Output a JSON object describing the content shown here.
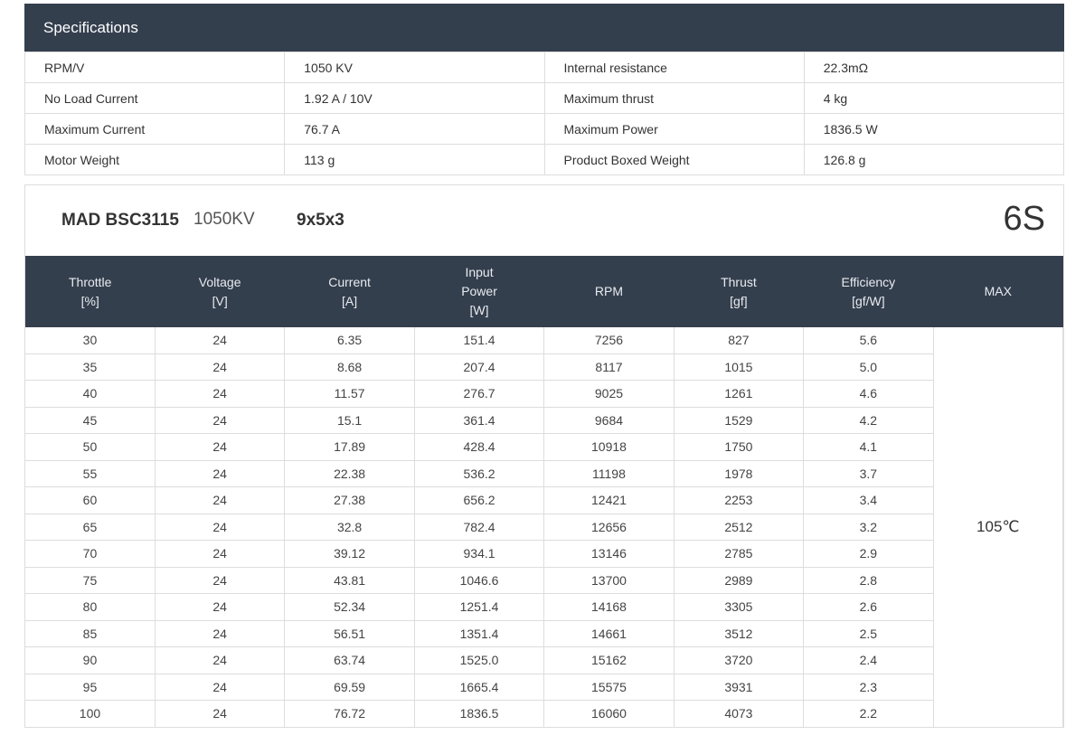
{
  "specs": {
    "title": "Specifications",
    "rows": [
      [
        "RPM/V",
        "1050 KV",
        "Internal resistance",
        "22.3mΩ"
      ],
      [
        "No Load Current",
        "1.92 A / 10V",
        "Maximum thrust",
        "4 kg"
      ],
      [
        "Maximum Current",
        "76.7 A",
        "Maximum Power",
        "1836.5 W"
      ],
      [
        "Motor Weight",
        "113 g",
        "Product Boxed Weight",
        "126.8 g"
      ]
    ]
  },
  "perf": {
    "model": "MAD BSC3115",
    "kv": "1050KV",
    "prop": "9x5x3",
    "cells": "6S",
    "headers": [
      [
        "Throttle",
        "[%]"
      ],
      [
        "Voltage",
        "[V]"
      ],
      [
        "Current",
        "[A]"
      ],
      [
        "Input",
        "Power",
        "[W]"
      ],
      [
        "RPM"
      ],
      [
        "Thrust",
        "[gf]"
      ],
      [
        "Efficiency",
        "[gf/W]"
      ],
      [
        "MAX"
      ]
    ],
    "max_temp": "105℃",
    "rows": [
      [
        "30",
        "24",
        "6.35",
        "151.4",
        "7256",
        "827",
        "5.6"
      ],
      [
        "35",
        "24",
        "8.68",
        "207.4",
        "8117",
        "1015",
        "5.0"
      ],
      [
        "40",
        "24",
        "11.57",
        "276.7",
        "9025",
        "1261",
        "4.6"
      ],
      [
        "45",
        "24",
        "15.1",
        "361.4",
        "9684",
        "1529",
        "4.2"
      ],
      [
        "50",
        "24",
        "17.89",
        "428.4",
        "10918",
        "1750",
        "4.1"
      ],
      [
        "55",
        "24",
        "22.38",
        "536.2",
        "11198",
        "1978",
        "3.7"
      ],
      [
        "60",
        "24",
        "27.38",
        "656.2",
        "12421",
        "2253",
        "3.4"
      ],
      [
        "65",
        "24",
        "32.8",
        "782.4",
        "12656",
        "2512",
        "3.2"
      ],
      [
        "70",
        "24",
        "39.12",
        "934.1",
        "13146",
        "2785",
        "2.9"
      ],
      [
        "75",
        "24",
        "43.81",
        "1046.6",
        "13700",
        "2989",
        "2.8"
      ],
      [
        "80",
        "24",
        "52.34",
        "1251.4",
        "14168",
        "3305",
        "2.6"
      ],
      [
        "85",
        "24",
        "56.51",
        "1351.4",
        "14661",
        "3512",
        "2.5"
      ],
      [
        "90",
        "24",
        "63.74",
        "1525.0",
        "15162",
        "3720",
        "2.4"
      ],
      [
        "95",
        "24",
        "69.59",
        "1665.4",
        "15575",
        "3931",
        "2.3"
      ],
      [
        "100",
        "24",
        "76.72",
        "1836.5",
        "16060",
        "4073",
        "2.2"
      ]
    ]
  }
}
